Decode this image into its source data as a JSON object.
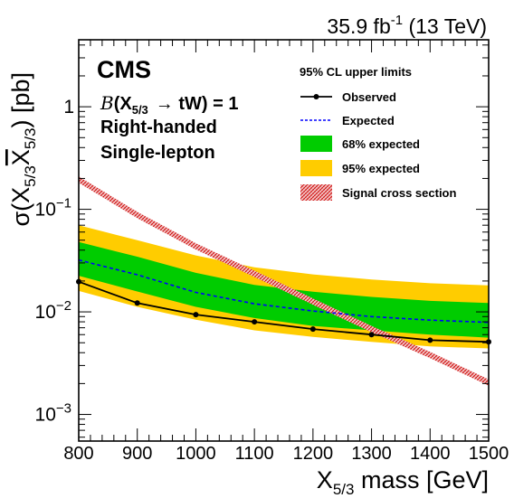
{
  "chart_data": {
    "type": "line",
    "lumi_label": "35.9 fb",
    "lumi_sup": "-1",
    "lumi_energy": " (13 TeV)",
    "experiment": "CMS",
    "annotations": [
      {
        "prefix": "B",
        "paren_open": "(",
        "particle": "X",
        "particle_sub": "5/3",
        "arrow": "→",
        "decay": " tW) = 1"
      },
      "Right-handed",
      "Single-lepton"
    ],
    "legend_title": "95% CL upper limits",
    "legend_placement": "top-right",
    "xlabel": {
      "main": "X",
      "sub": "5/3",
      "rest": " mass [GeV]"
    },
    "ylabel": {
      "pre": "σ(X",
      "sub1": "5/3",
      "mid": "X",
      "sub2": "5/3",
      "post": ") [pb]"
    },
    "xlim": [
      800,
      1500
    ],
    "ylim": [
      0.00055,
      4.5
    ],
    "ylog": true,
    "xticks": [
      800,
      900,
      1000,
      1100,
      1200,
      1300,
      1400,
      1500
    ],
    "yticks": [
      {
        "base": "10",
        "exp": "−3",
        "value": 0.001
      },
      {
        "base": "10",
        "exp": "−2",
        "value": 0.01
      },
      {
        "base": "10",
        "exp": "−1",
        "value": 0.1
      },
      {
        "base": "1",
        "exp": "",
        "value": 1
      }
    ],
    "x": [
      800,
      900,
      1000,
      1100,
      1200,
      1300,
      1400,
      1500
    ],
    "series": [
      {
        "name": "Observed",
        "color": "#000000",
        "values": [
          0.0197,
          0.0122,
          0.0094,
          0.008,
          0.0068,
          0.006,
          0.0053,
          0.0051
        ]
      },
      {
        "name": "Expected",
        "color": "#0000ff",
        "values": [
          0.032,
          0.023,
          0.0155,
          0.012,
          0.0102,
          0.009,
          0.0083,
          0.0079
        ]
      },
      {
        "name": "68% expected",
        "color": "#00cc00",
        "lower": [
          0.0225,
          0.0158,
          0.0112,
          0.0087,
          0.0073,
          0.0066,
          0.006,
          0.0056
        ],
        "upper": [
          0.048,
          0.0345,
          0.024,
          0.0183,
          0.0157,
          0.014,
          0.0128,
          0.0122
        ]
      },
      {
        "name": "95% expected",
        "color": "#ffcc00",
        "lower": [
          0.016,
          0.0112,
          0.0084,
          0.0066,
          0.0057,
          0.0051,
          0.0046,
          0.0044
        ],
        "upper": [
          0.07,
          0.05,
          0.0355,
          0.0272,
          0.0232,
          0.0207,
          0.019,
          0.0181
        ]
      },
      {
        "name": "Signal cross section",
        "color": "#cc0000",
        "values": [
          0.195,
          0.088,
          0.0435,
          0.0235,
          0.0126,
          0.0068,
          0.0038,
          0.00205
        ]
      }
    ]
  }
}
